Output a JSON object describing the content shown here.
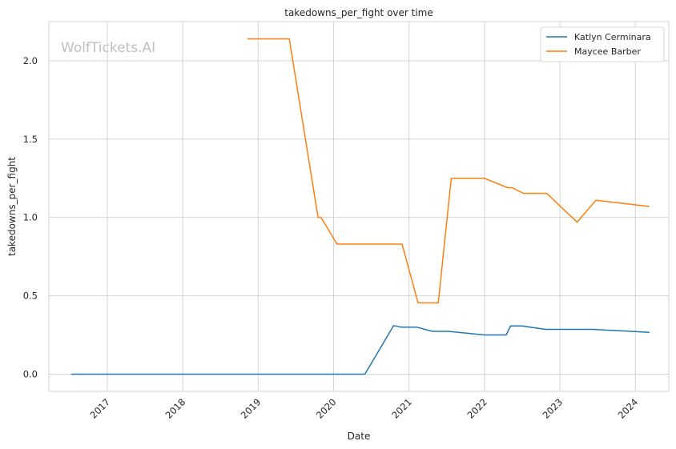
{
  "chart_data": {
    "type": "line",
    "title": "takedowns_per_fight over time",
    "xlabel": "Date",
    "ylabel": "takedowns_per_fight",
    "watermark": "WolfTickets.AI",
    "xlim": [
      "2016-03-24",
      "2024-06-11"
    ],
    "ylim": [
      -0.11,
      2.25
    ],
    "x_ticks": [
      "2017-01-01",
      "2018-01-01",
      "2019-01-01",
      "2020-01-01",
      "2021-01-01",
      "2022-01-01",
      "2023-01-01",
      "2024-01-01"
    ],
    "x_tick_labels": [
      "2017",
      "2018",
      "2019",
      "2020",
      "2021",
      "2022",
      "2023",
      "2024"
    ],
    "y_ticks": [
      0.0,
      0.5,
      1.0,
      1.5,
      2.0
    ],
    "y_tick_labels": [
      "0.0",
      "0.5",
      "1.0",
      "1.5",
      "2.0"
    ],
    "grid": true,
    "legend_position": "top-right",
    "series": [
      {
        "name": "Katlyn Cerminara",
        "color": "#1f77b4",
        "points": [
          [
            "2016-07-09",
            0.0
          ],
          [
            "2020-06-01",
            0.0
          ],
          [
            "2020-10-18",
            0.31
          ],
          [
            "2020-11-25",
            0.3
          ],
          [
            "2021-02-06",
            0.3
          ],
          [
            "2021-04-24",
            0.273
          ],
          [
            "2021-07-10",
            0.273
          ],
          [
            "2022-01-01",
            0.25
          ],
          [
            "2022-04-16",
            0.25
          ],
          [
            "2022-05-07",
            0.308
          ],
          [
            "2022-07-02",
            0.308
          ],
          [
            "2022-10-22",
            0.286
          ],
          [
            "2023-06-10",
            0.286
          ],
          [
            "2024-03-09",
            0.267
          ]
        ]
      },
      {
        "name": "Maycee Barber",
        "color": "#ff7f0e",
        "points": [
          [
            "2018-11-10",
            2.14
          ],
          [
            "2019-06-01",
            2.14
          ],
          [
            "2019-10-18",
            1.0
          ],
          [
            "2019-11-02",
            1.0
          ],
          [
            "2020-01-18",
            0.83
          ],
          [
            "2020-11-28",
            0.83
          ],
          [
            "2021-02-13",
            0.455
          ],
          [
            "2021-05-22",
            0.455
          ],
          [
            "2021-07-24",
            1.25
          ],
          [
            "2022-01-01",
            1.25
          ],
          [
            "2022-04-23",
            1.19
          ],
          [
            "2022-05-14",
            1.19
          ],
          [
            "2022-07-09",
            1.154
          ],
          [
            "2022-10-29",
            1.154
          ],
          [
            "2023-03-25",
            0.97
          ],
          [
            "2023-06-24",
            1.11
          ],
          [
            "2024-03-09",
            1.07
          ]
        ]
      }
    ]
  }
}
